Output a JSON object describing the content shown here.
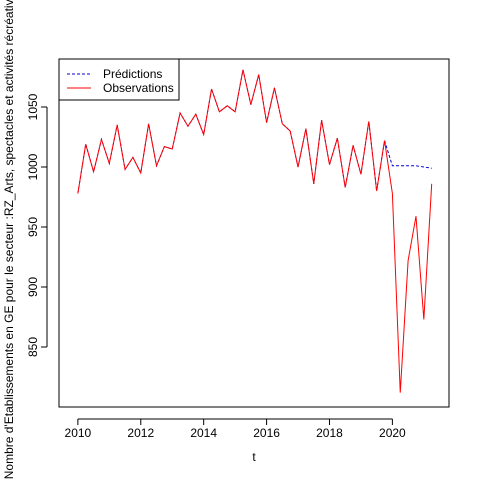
{
  "chart_data": {
    "type": "line",
    "xlabel": "t",
    "ylabel": "Nombre d'Etablissements en GE pour le secteur :RZ_Arts, spectacles et activités récréatives",
    "xlim": [
      2009.4,
      2021.8
    ],
    "ylim": [
      800,
      1090
    ],
    "x_ticks": [
      2010,
      2012,
      2014,
      2016,
      2018,
      2020
    ],
    "y_ticks": [
      850,
      900,
      950,
      1000,
      1050
    ],
    "grid": false,
    "legend_position": "top-left",
    "series": [
      {
        "name": "Prédictions",
        "color": "#0000cd",
        "style": "dashed",
        "x": [
          2010.0,
          2010.25,
          2010.5,
          2010.75,
          2011.0,
          2011.25,
          2011.5,
          2011.75,
          2012.0,
          2012.25,
          2012.5,
          2012.75,
          2013.0,
          2013.25,
          2013.5,
          2013.75,
          2014.0,
          2014.25,
          2014.5,
          2014.75,
          2015.0,
          2015.25,
          2015.5,
          2015.75,
          2016.0,
          2016.25,
          2016.5,
          2016.75,
          2017.0,
          2017.25,
          2017.5,
          2017.75,
          2018.0,
          2018.25,
          2018.5,
          2018.75,
          2019.0,
          2019.25,
          2019.5,
          2019.75,
          2020.0,
          2020.25,
          2020.5,
          2020.75,
          2021.0,
          2021.25
        ],
        "values": [
          978,
          1019,
          996,
          1023,
          1003,
          1035,
          998,
          1008,
          995,
          1036,
          1001,
          1017,
          1015,
          1045,
          1034,
          1044,
          1027,
          1065,
          1046,
          1051,
          1046,
          1081,
          1052,
          1077,
          1037,
          1066,
          1036,
          1030,
          1000,
          1032,
          986,
          1039,
          1002,
          1024,
          983,
          1018,
          994,
          1038,
          980,
          1022,
          1001,
          1001,
          1001,
          1001,
          1000,
          999
        ]
      },
      {
        "name": "Observations",
        "color": "#ff0000",
        "style": "solid",
        "x": [
          2010.0,
          2010.25,
          2010.5,
          2010.75,
          2011.0,
          2011.25,
          2011.5,
          2011.75,
          2012.0,
          2012.25,
          2012.5,
          2012.75,
          2013.0,
          2013.25,
          2013.5,
          2013.75,
          2014.0,
          2014.25,
          2014.5,
          2014.75,
          2015.0,
          2015.25,
          2015.5,
          2015.75,
          2016.0,
          2016.25,
          2016.5,
          2016.75,
          2017.0,
          2017.25,
          2017.5,
          2017.75,
          2018.0,
          2018.25,
          2018.5,
          2018.75,
          2019.0,
          2019.25,
          2019.5,
          2019.75,
          2020.0,
          2020.25,
          2020.5,
          2020.75,
          2021.0,
          2021.25
        ],
        "values": [
          978,
          1019,
          996,
          1023,
          1003,
          1035,
          998,
          1008,
          995,
          1036,
          1001,
          1017,
          1015,
          1045,
          1034,
          1044,
          1027,
          1065,
          1046,
          1051,
          1046,
          1081,
          1052,
          1077,
          1037,
          1066,
          1036,
          1030,
          1000,
          1032,
          986,
          1039,
          1002,
          1024,
          983,
          1018,
          994,
          1038,
          980,
          1022,
          978,
          812,
          922,
          959,
          873,
          986
        ]
      }
    ]
  }
}
